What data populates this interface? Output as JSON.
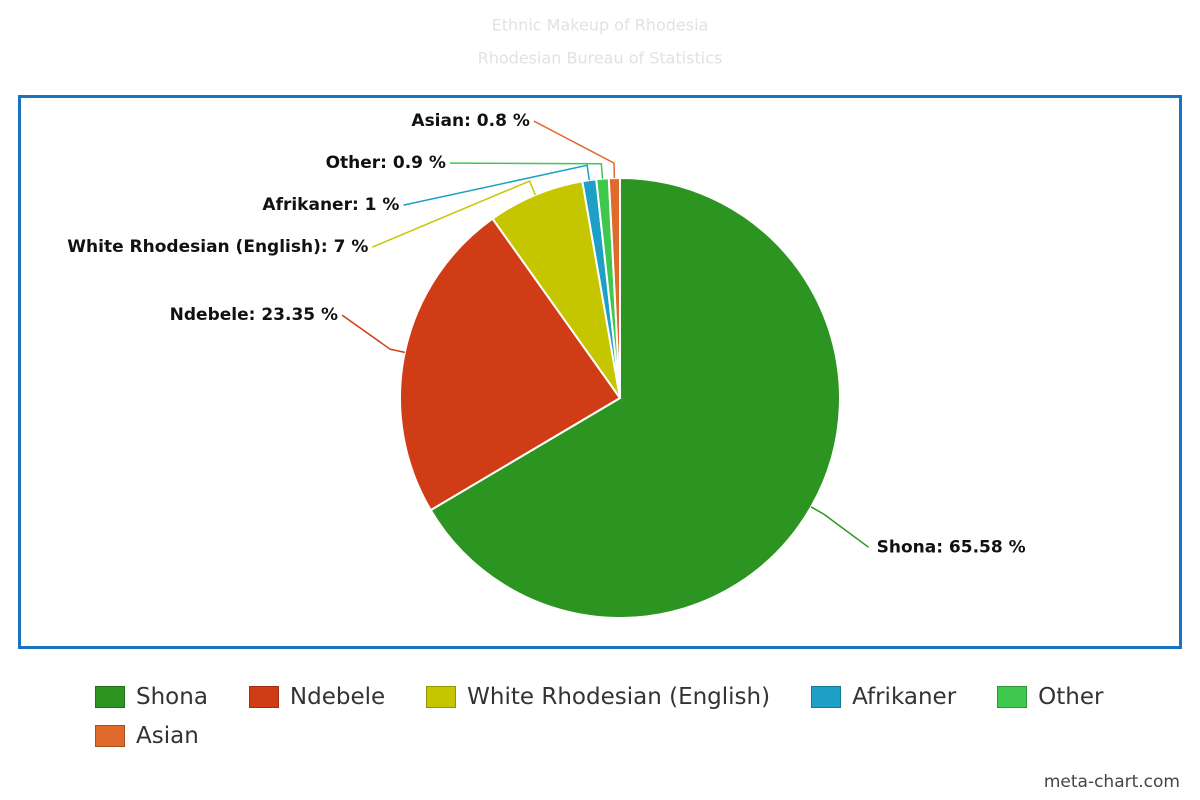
{
  "chart_data": {
    "type": "pie",
    "title": "Ethnic Makeup of Rhodesia",
    "subtitle": "Rhodesian Bureau of Statistics",
    "categories": [
      "Shona",
      "Ndebele",
      "White Rhodesian (English)",
      "Afrikaner",
      "Other",
      "Asian"
    ],
    "values": [
      65.58,
      23.35,
      7,
      1,
      0.9,
      0.8
    ],
    "value_labels": [
      "Shona: 65.58 %",
      "Ndebele: 23.35 %",
      "White Rhodesian (English): 7 %",
      "Afrikaner: 1 %",
      "Other: 0.9 %",
      "Asian: 0.8 %"
    ],
    "colors": [
      "#2c9420",
      "#d03c16",
      "#c6c600",
      "#1ea0c6",
      "#3ec84e",
      "#e06a2c"
    ],
    "legend": "bottom"
  },
  "credit": "meta-chart.com"
}
